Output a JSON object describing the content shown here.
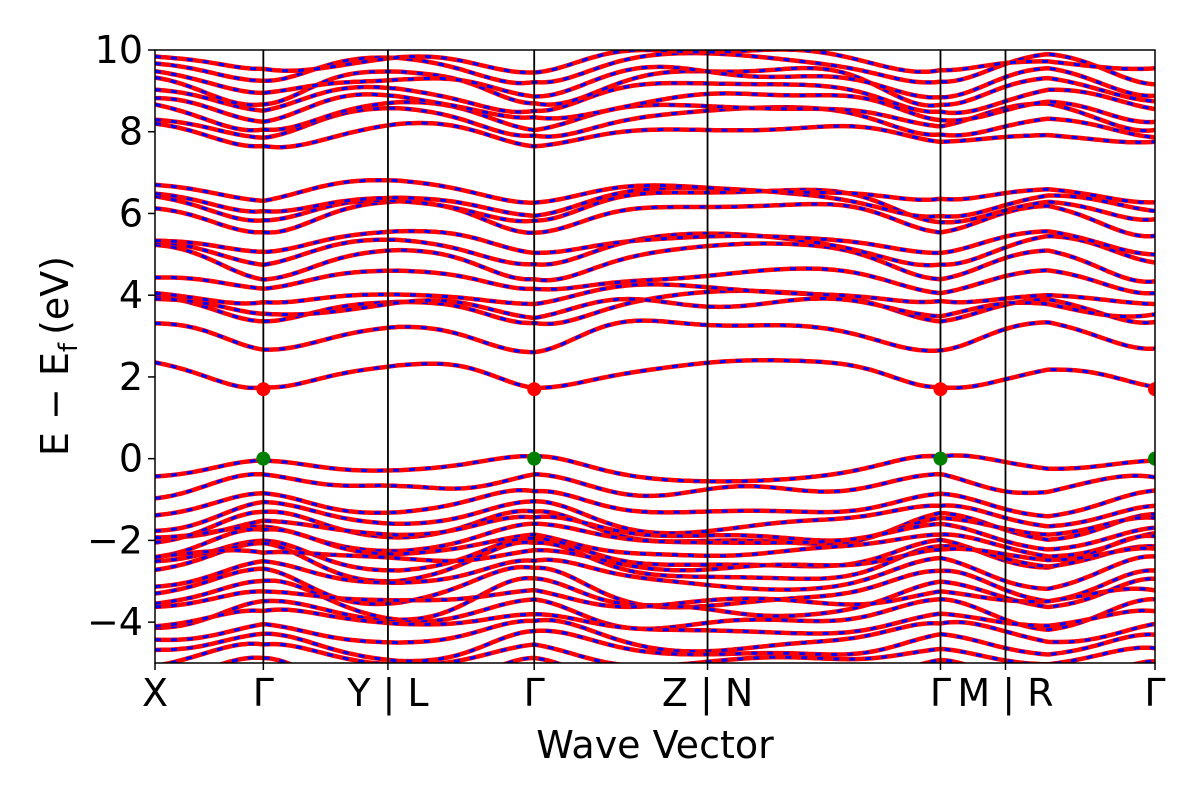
{
  "chart_data": {
    "type": "line",
    "title": "",
    "xlabel": "Wave Vector",
    "ylabel": "E − E",
    "ylabel_subscript": "f",
    "ylabel_unit": "(eV)",
    "ylim": [
      -5,
      10
    ],
    "yticks": [
      -4,
      -2,
      0,
      2,
      4,
      6,
      8,
      10
    ],
    "ytick_labels": [
      "−4",
      "−2",
      "0",
      "2",
      "4",
      "6",
      "8",
      "10"
    ],
    "x_range": [
      0,
      9.23
    ],
    "kpoint_ticks": [
      {
        "x": 0.0,
        "label": "X"
      },
      {
        "x": 1.0,
        "label": "Γ"
      },
      {
        "x": 2.15,
        "label": "Y | L"
      },
      {
        "x": 3.5,
        "label": "Γ"
      },
      {
        "x": 5.1,
        "label": "Z | N"
      },
      {
        "x": 7.25,
        "label": "Γ"
      },
      {
        "x": 7.85,
        "label": "M | R"
      },
      {
        "x": 9.23,
        "label": "Γ"
      }
    ],
    "segment_boundaries": [
      1.0,
      2.15,
      3.5,
      5.1,
      7.25,
      7.85
    ],
    "band_colors": {
      "primary": "#ff0000",
      "overlay": "#0000ff"
    },
    "marker_colors": {
      "cbm": "#ff0000",
      "vbm": "#008000"
    },
    "cbm_markers": [
      {
        "x": 1.0,
        "y": 1.7
      },
      {
        "x": 3.5,
        "y": 1.7
      },
      {
        "x": 7.25,
        "y": 1.7
      },
      {
        "x": 9.23,
        "y": 1.7
      }
    ],
    "vbm_markers": [
      {
        "x": 1.0,
        "y": 0.0
      },
      {
        "x": 3.5,
        "y": 0.0
      },
      {
        "x": 7.25,
        "y": 0.0
      },
      {
        "x": 9.23,
        "y": 0.0
      }
    ],
    "conduction_band_energies_at_gamma": [
      1.7,
      2.65,
      3.3,
      3.5,
      3.8,
      4.1,
      4.4,
      4.8,
      5.0,
      5.5,
      5.8,
      6.0,
      6.3,
      7.7,
      7.9,
      8.1,
      8.3,
      8.5,
      8.7,
      8.9,
      9.2,
      9.5
    ],
    "valence_band_energies_at_gamma": [
      0.0,
      -0.4,
      -0.8,
      -1.1,
      -1.35,
      -1.5,
      -1.65,
      -1.8,
      -1.95,
      -2.1,
      -2.25,
      -2.45,
      -2.7,
      -2.95,
      -3.2,
      -3.5,
      -3.75,
      -4.0,
      -4.25,
      -4.6,
      -4.9
    ]
  }
}
